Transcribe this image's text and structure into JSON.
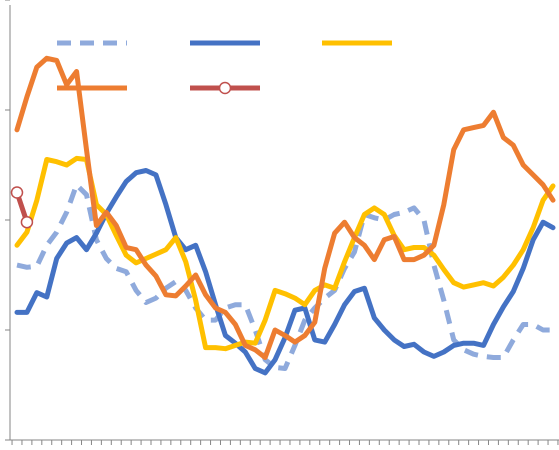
{
  "chart_data": {
    "type": "line",
    "categories": [
      null,
      null,
      null,
      null,
      null,
      null,
      null,
      null,
      null,
      null,
      null,
      null,
      null,
      null,
      null,
      null,
      null,
      null,
      null,
      null,
      null,
      null,
      null,
      null,
      null,
      null,
      null,
      null,
      null,
      null,
      null,
      null,
      null,
      null,
      null,
      null,
      null,
      null,
      null,
      null,
      null,
      null,
      null,
      null,
      null,
      null,
      null,
      null,
      null,
      null,
      null,
      null,
      null,
      null,
      null
    ],
    "ylim": [
      0,
      4
    ],
    "yticks": [
      0,
      1,
      2,
      3,
      4
    ],
    "series": [
      {
        "color": "#8faadc",
        "dash": "dashed",
        "values": [
          1.59,
          1.57,
          1.58,
          1.77,
          1.89,
          2.07,
          2.32,
          2.23,
          1.82,
          1.65,
          1.56,
          1.53,
          1.36,
          1.25,
          1.29,
          1.38,
          1.44,
          1.36,
          1.2,
          1.09,
          1.09,
          1.2,
          1.23,
          1.23,
          1,
          0.73,
          0.66,
          0.65,
          0.86,
          1.09,
          1.2,
          1.29,
          1.36,
          1.56,
          1.71,
          2.05,
          2.02,
          2,
          2.05,
          2.07,
          2.11,
          2,
          1.59,
          1.27,
          0.91,
          0.82,
          0.78,
          0.76,
          0.75,
          0.75,
          0.91,
          1.05,
          1.05,
          1,
          1
        ]
      },
      {
        "color": "#4472c4",
        "values": [
          1.16,
          1.16,
          1.34,
          1.3,
          1.65,
          1.79,
          1.84,
          1.73,
          1.88,
          2.06,
          2.21,
          2.35,
          2.43,
          2.45,
          2.41,
          2.14,
          1.84,
          1.73,
          1.77,
          1.53,
          1.23,
          0.95,
          0.88,
          0.8,
          0.65,
          0.61,
          0.73,
          0.93,
          1.18,
          1.2,
          0.91,
          0.89,
          1.05,
          1.23,
          1.35,
          1.38,
          1.11,
          1,
          0.91,
          0.85,
          0.87,
          0.8,
          0.76,
          0.8,
          0.86,
          0.88,
          0.88,
          0.86,
          1.05,
          1.21,
          1.35,
          1.56,
          1.82,
          1.98,
          1.93
        ]
      },
      {
        "color": "#ffc000",
        "values": [
          1.77,
          1.89,
          2.18,
          2.55,
          2.53,
          2.5,
          2.56,
          2.55,
          2.14,
          2.05,
          1.86,
          1.68,
          1.61,
          1.65,
          1.69,
          1.73,
          1.84,
          1.62,
          1.27,
          0.84,
          0.84,
          0.83,
          0.86,
          0.89,
          0.88,
          1.09,
          1.36,
          1.33,
          1.29,
          1.23,
          1.36,
          1.41,
          1.38,
          1.62,
          1.84,
          2.05,
          2.11,
          2.05,
          1.86,
          1.73,
          1.75,
          1.75,
          1.68,
          1.55,
          1.43,
          1.39,
          1.41,
          1.43,
          1.4,
          1.48,
          1.59,
          1.73,
          1.93,
          2.18,
          2.31
        ]
      },
      {
        "color": "#ed7d31",
        "values": [
          2.82,
          3.12,
          3.39,
          3.47,
          3.45,
          3.23,
          3.35,
          2.64,
          1.95,
          2.07,
          1.95,
          1.75,
          1.73,
          1.59,
          1.49,
          1.32,
          1.31,
          1.4,
          1.5,
          1.32,
          1.2,
          1.16,
          1.05,
          0.86,
          0.82,
          0.75,
          1,
          0.95,
          0.89,
          0.95,
          1.07,
          1.56,
          1.88,
          1.98,
          1.84,
          1.77,
          1.64,
          1.82,
          1.85,
          1.64,
          1.64,
          1.68,
          1.77,
          2.14,
          2.64,
          2.82,
          2.84,
          2.86,
          2.98,
          2.75,
          2.68,
          2.5,
          2.41,
          2.32,
          2.18
        ]
      },
      {
        "color": "#c0504d",
        "marker": "circle",
        "values": [
          2.25,
          1.98,
          null,
          null,
          null,
          null,
          null,
          null,
          null,
          null,
          null,
          null,
          null,
          null,
          null,
          null,
          null,
          null,
          null,
          null,
          null,
          null,
          null,
          null,
          null,
          null,
          null,
          null,
          null,
          null,
          null,
          null,
          null,
          null,
          null,
          null,
          null,
          null,
          null,
          null,
          null,
          null,
          null,
          null,
          null,
          null,
          null,
          null,
          null,
          null,
          null,
          null,
          null,
          null,
          null
        ]
      }
    ]
  }
}
